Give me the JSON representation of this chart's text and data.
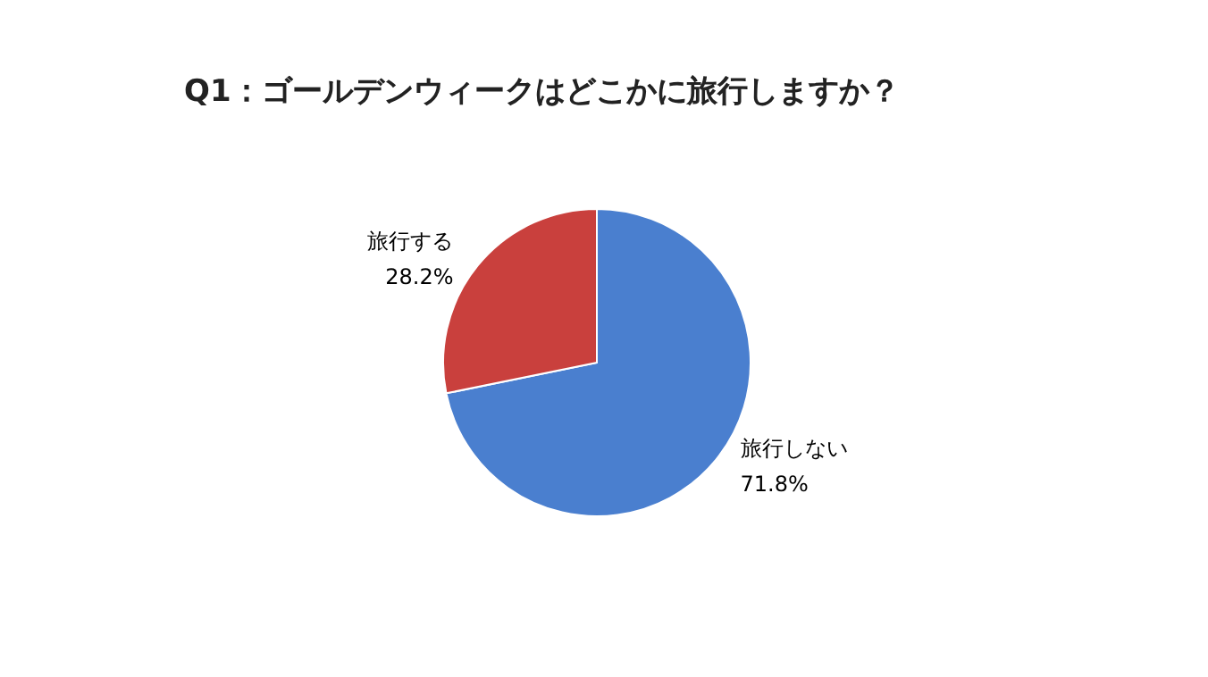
{
  "chart_data": {
    "type": "pie",
    "title": "Q1：ゴールデンウィークはどこかに旅行しますか？",
    "categories": [
      "旅行しない",
      "旅行する"
    ],
    "values": [
      71.8,
      28.2
    ],
    "value_labels": [
      "71.8%",
      "28.2%"
    ],
    "colors": [
      "#4a7fcf",
      "#c9403d"
    ],
    "legend": false
  }
}
